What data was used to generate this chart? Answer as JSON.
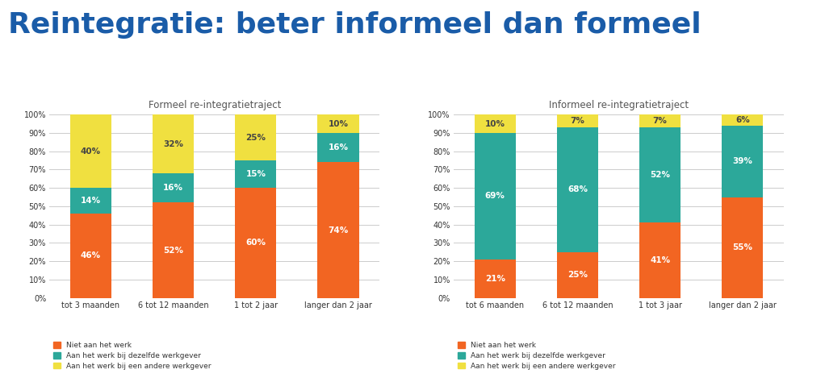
{
  "title": "Reintegratie: beter informeel dan formeel",
  "title_color": "#1a5ca8",
  "title_fontsize": 26,
  "title_fontweight": "bold",
  "background_color": "#ffffff",
  "plot_background": "#ffffff",
  "grid_color": "#cccccc",
  "text_color": "#333333",
  "label_color": "#333333",
  "subtitle_color": "#555555",
  "formeel": {
    "subtitle": "Formeel re-integratietraject",
    "categories": [
      "tot 3 maanden",
      "6 tot 12 maanden",
      "1 tot 2 jaar",
      "langer dan 2 jaar"
    ],
    "niet_aan_het_werk": [
      46,
      52,
      60,
      74
    ],
    "zelfde_werkgever": [
      14,
      16,
      15,
      16
    ],
    "andere_werkgever": [
      40,
      32,
      25,
      10
    ]
  },
  "informeel": {
    "subtitle": "Informeel re-integratietraject",
    "categories": [
      "tot 6 maanden",
      "6 tot 12 maanden",
      "1 tot 3 jaar",
      "langer dan 2 jaar"
    ],
    "niet_aan_het_werk": [
      21,
      25,
      41,
      55
    ],
    "zelfde_werkgever": [
      69,
      68,
      52,
      39
    ],
    "andere_werkgever": [
      10,
      7,
      7,
      6
    ]
  },
  "color_niet": "#f26522",
  "color_zelfde": "#2ca89a",
  "color_andere": "#f0e040",
  "legend_niet": "Niet aan het werk",
  "legend_zelfde": "Aan het werk bij dezelfde werkgever",
  "legend_andere": "Aan het werk bij een andere werkgever",
  "ylim": [
    0,
    100
  ],
  "yticks": [
    0,
    10,
    20,
    30,
    40,
    50,
    60,
    70,
    80,
    90,
    100
  ],
  "ytick_labels": [
    "0%",
    "10%",
    "20%",
    "30%",
    "40%",
    "50%",
    "60%",
    "70%",
    "80%",
    "90%",
    "100%"
  ]
}
